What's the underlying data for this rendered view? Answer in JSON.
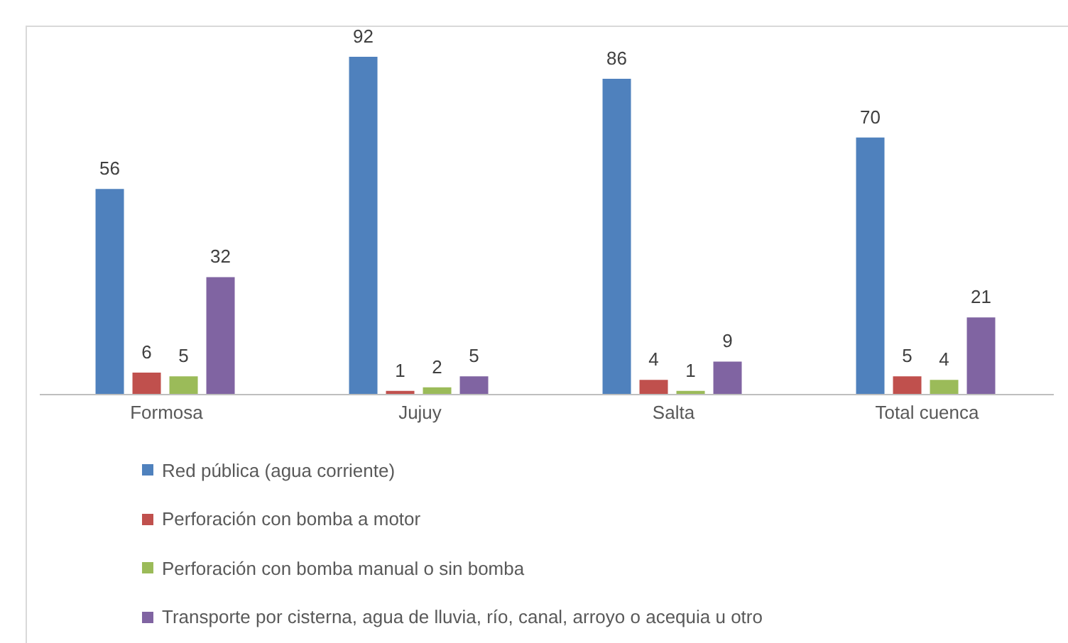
{
  "chart_data": {
    "type": "bar",
    "categories": [
      "Formosa",
      "Jujuy",
      "Salta",
      "Total cuenca"
    ],
    "series": [
      {
        "name": "Red pública (agua corriente)",
        "color": "#4f81bd",
        "values": [
          56,
          92,
          86,
          70
        ]
      },
      {
        "name": "Perforación con bomba a motor",
        "color": "#c0504d",
        "values": [
          6,
          1,
          4,
          5
        ]
      },
      {
        "name": "Perforación con bomba manual o sin bomba",
        "color": "#9bbb59",
        "values": [
          5,
          2,
          1,
          4
        ]
      },
      {
        "name": "Transporte por cisterna, agua de lluvia, río, canal, arroyo o acequia u otro",
        "color": "#8064a2",
        "values": [
          32,
          5,
          9,
          21
        ]
      }
    ],
    "data_labels": true,
    "legend": "bottom",
    "grid": false
  }
}
